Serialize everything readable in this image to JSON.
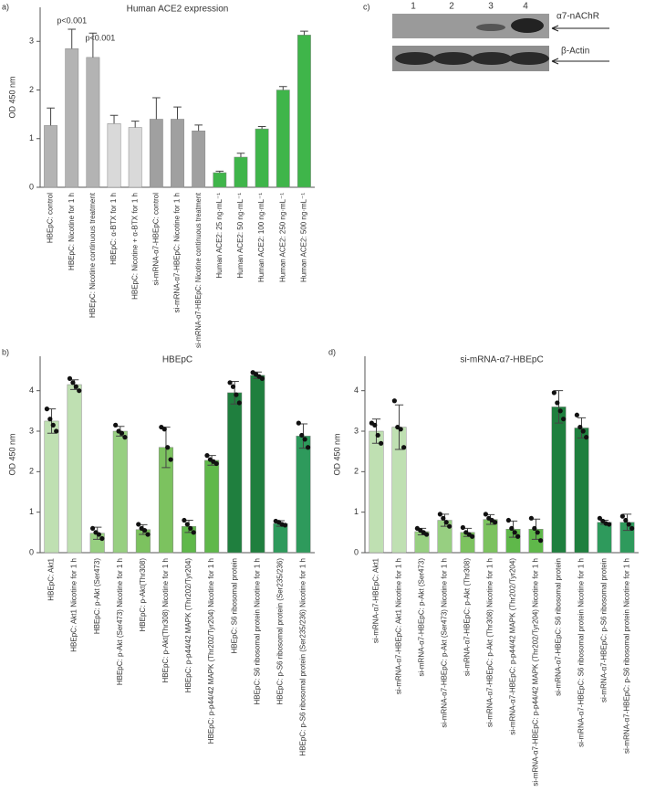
{
  "chart_data": [
    {
      "type": "bar",
      "panel_label": "a)",
      "title": "Human ACE2 expression",
      "y_label": "OD 450 nm",
      "categories": [
        "HBEpC: control",
        "HBEpC: Nicotine for 1 h",
        "HBEpC: Nicotine continuous treatment",
        "HBEpC: α-BTX for 1 h",
        "HBEpC: Nicotine + α-BTX for 1 h",
        "si-mRNA-α7-HBEpC: control",
        "si-mRNA-α7-HBEpC: Nicotine for 1 h",
        "si-mRNA-α7-HBEpC: Nicotine continuous treatment",
        "Human ACE2: 25 ng·mL⁻¹",
        "Human ACE2: 50 ng·mL⁻¹",
        "Human ACE2: 100 ng·mL⁻¹",
        "Human ACE2: 250 ng·mL⁻¹",
        "Human ACE2: 500 ng·mL⁻¹"
      ],
      "values": [
        1.27,
        2.85,
        2.67,
        1.31,
        1.23,
        1.4,
        1.4,
        1.16,
        0.3,
        0.62,
        1.2,
        2.0,
        3.13
      ],
      "errors": [
        0.36,
        0.4,
        0.5,
        0.17,
        0.13,
        0.44,
        0.25,
        0.12,
        0.03,
        0.08,
        0.05,
        0.07,
        0.08
      ],
      "error_direction": "up",
      "colors": [
        "#b3b3b3",
        "#b3b3b3",
        "#b3b3b3",
        "#d9d9d9",
        "#d9d9d9",
        "#a0a0a0",
        "#a0a0a0",
        "#a0a0a0",
        "#3fb54a",
        "#3fb54a",
        "#3fb54a",
        "#3fb54a",
        "#3fb54a"
      ],
      "annotations": [
        "p<0.001",
        "p<0.001"
      ],
      "ylim": [
        0,
        3.7
      ],
      "yticks": [
        0,
        1,
        2,
        3
      ]
    },
    {
      "type": "bar",
      "panel_label": "b)",
      "title": "HBEpC",
      "y_label": "OD 450 nm",
      "categories": [
        "HBEpC: Akt1",
        "HBEpC: Akt1 Nicotine for 1 h",
        "HBEpC: p-Akt (Ser473)",
        "HBEpC: p-Akt (Ser473) Nicotine for 1 h",
        "HBEpC: p-Akt(Thr308)",
        "HBEpC: p-Akt(Thr308) Nicotine for 1 h",
        "HBEpC: p-p44/42 MAPK (Thr202/Tyr204)",
        "HBEpC: p-p44/42 MAPK (Thr202/Tyr204) Nicotine for 1 h",
        "HBEpC: S6 ribosomal protein",
        "HBEpC: S6 ribosomal protein Nicotine for 1 h",
        "HBEpC: p-S6 ribosomal protein (Ser235/236)",
        "HBEpC: p-S6 ribosomal protein (Ser235/236) Nicotine for 1 h"
      ],
      "values": [
        3.25,
        4.15,
        0.48,
        3.0,
        0.57,
        2.6,
        0.65,
        2.28,
        3.95,
        4.38,
        0.72,
        2.88
      ],
      "errors": [
        0.3,
        0.12,
        0.15,
        0.12,
        0.12,
        0.5,
        0.15,
        0.12,
        0.28,
        0.08,
        0.07,
        0.3
      ],
      "error_direction": "both",
      "points": [
        [
          3.55,
          3.3,
          3.15,
          3.0
        ],
        [
          4.3,
          4.2,
          4.1,
          4.0
        ],
        [
          0.6,
          0.5,
          0.45,
          0.35
        ],
        [
          3.15,
          3.0,
          2.95,
          2.85
        ],
        [
          0.7,
          0.6,
          0.55,
          0.45
        ],
        [
          3.1,
          3.05,
          2.6,
          2.3
        ],
        [
          0.8,
          0.7,
          0.6,
          0.5
        ],
        [
          2.4,
          2.3,
          2.25,
          2.2
        ],
        [
          4.2,
          4.1,
          3.9,
          3.7
        ],
        [
          4.45,
          4.4,
          4.35,
          4.3
        ],
        [
          0.78,
          0.75,
          0.7,
          0.68
        ],
        [
          3.2,
          2.9,
          2.8,
          2.6
        ]
      ],
      "colors": [
        "#bfe0b2",
        "#bfe0b2",
        "#97cf81",
        "#97cf81",
        "#7cc25f",
        "#7cc25f",
        "#5fb84a",
        "#5fb84a",
        "#1f7f3e",
        "#1f7f3e",
        "#2e9a5c",
        "#2e9a5c"
      ],
      "ylim": [
        0,
        4.85
      ],
      "yticks": [
        0,
        1,
        2,
        3,
        4
      ]
    },
    {
      "type": "bar",
      "panel_label": "d)",
      "title": "si-mRNA-α7-HBEpC",
      "y_label": "OD 450 nm",
      "categories": [
        "si-mRNA-α7-HBEpC: Akt1",
        "si-mRNA-α7-HBEpC: Akt1 Nicotine for 1 h",
        "si-mRNA-α7-HBEpC: p-Akt (Ser473)",
        "si-mRNA-α7-HBEpC: p-Akt (Ser473) Nicotine for 1 h",
        "si-mRNA-α7-HBEpC: p-Akt (Thr308)",
        "si-mRNA-α7-HBEpC: p-Akt (Thr308) Nicotine for 1 h",
        "si-mRNA-α7-HBEpC: p-p44/42 MAPK (Thr202/Tyr204)",
        "si-mRNA-α7-HBEpC: p-p44/42 MAPK (Thr202/Tyr204) Nicotine for 1 h",
        "si-mRNA-α7-HBEpC: S6 ribosomal protein",
        "si-mRNA-α7-HBEpC: S6 ribosomal protein Nicotine for 1 h",
        "si-mRNA-α7-HBEpC: p-S6 ribosomal protein",
        "si-mRNA-α7-HBEpC: p-S6 ribosomal protein Nicotine for 1 h"
      ],
      "values": [
        3.0,
        3.1,
        0.52,
        0.8,
        0.5,
        0.82,
        0.58,
        0.58,
        3.6,
        3.08,
        0.75,
        0.75
      ],
      "errors": [
        0.3,
        0.55,
        0.08,
        0.15,
        0.1,
        0.12,
        0.2,
        0.25,
        0.4,
        0.25,
        0.05,
        0.2
      ],
      "error_direction": "both",
      "points": [
        [
          3.2,
          3.15,
          2.9,
          2.7
        ],
        [
          3.75,
          3.1,
          3.05,
          2.6
        ],
        [
          0.6,
          0.55,
          0.5,
          0.45
        ],
        [
          0.95,
          0.85,
          0.75,
          0.65
        ],
        [
          0.62,
          0.5,
          0.45,
          0.4
        ],
        [
          0.95,
          0.85,
          0.8,
          0.75
        ],
        [
          0.8,
          0.6,
          0.5,
          0.4
        ],
        [
          0.85,
          0.6,
          0.5,
          0.3
        ],
        [
          3.95,
          3.7,
          3.5,
          3.3
        ],
        [
          3.4,
          3.1,
          3.0,
          2.85
        ],
        [
          0.85,
          0.78,
          0.72,
          0.7
        ],
        [
          0.9,
          0.8,
          0.7,
          0.6
        ]
      ],
      "colors": [
        "#bfe0b2",
        "#bfe0b2",
        "#97cf81",
        "#97cf81",
        "#7cc25f",
        "#7cc25f",
        "#5fb84a",
        "#5fb84a",
        "#1f7f3e",
        "#1f7f3e",
        "#2e9a5c",
        "#2e9a5c"
      ],
      "ylim": [
        0,
        4.85
      ],
      "yticks": [
        0,
        1,
        2,
        3,
        4
      ]
    }
  ],
  "blot": {
    "panel_label": "c)",
    "lanes": [
      "1",
      "2",
      "3",
      "4"
    ],
    "bands": [
      "α7-nAChR",
      "β-Actin"
    ]
  }
}
